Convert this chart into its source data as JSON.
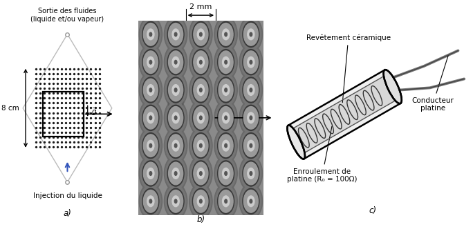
{
  "panel_a_label": "a)",
  "panel_b_label": "b)",
  "panel_c_label": "c)",
  "text_sortie": "Sortie des fluides\n(liquide et/ou vapeur)",
  "text_injection": "Injection du liquide",
  "text_8cm": "8 cm",
  "text_2mm": "2 mm",
  "text_g": "$\\vec{g}$",
  "text_revetement": "Revêtement céramique",
  "text_enroulement": "Enroulement de\nplatine (R₀ = 100Ω)",
  "text_conducteur": "Conducteur\nplatine",
  "bg_color": "#ffffff",
  "dot_color": "#1a1a1a",
  "blue_arrow_color": "#3355bb"
}
